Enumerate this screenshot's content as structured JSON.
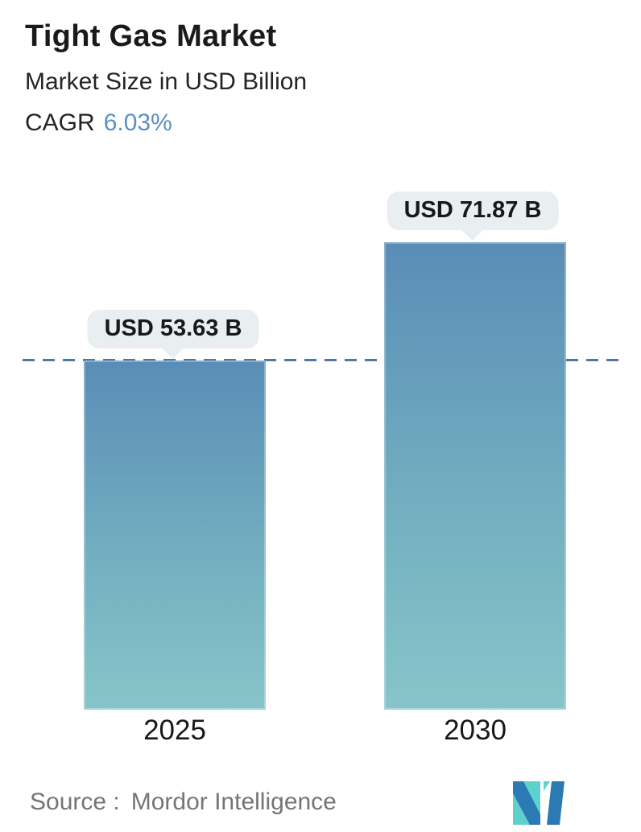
{
  "header": {
    "title": "Tight Gas Market",
    "subtitle": "Market Size in USD Billion",
    "cagr_label": "CAGR",
    "cagr_value": "6.03%"
  },
  "chart_data": {
    "type": "bar",
    "categories": [
      "2025",
      "2030"
    ],
    "values": [
      53.63,
      71.87
    ],
    "value_labels": [
      "USD 53.63 B",
      "USD 71.87 B"
    ],
    "unit": "USD Billion",
    "title": "Tight Gas Market",
    "ylabel": "Market Size in USD Billion",
    "ylim": [
      0,
      80
    ],
    "grid": false,
    "legend": false,
    "reference_line": {
      "value": 53.63,
      "style": "dashed",
      "color": "#4a7aa5"
    }
  },
  "footer": {
    "source_label": "Source :",
    "source_name": "Mordor Intelligence",
    "logo": "mordor-intelligence-logo"
  },
  "colors": {
    "bar_gradient_top": "#5a8db6",
    "bar_gradient_bottom": "#87c5c9",
    "dashed_line": "#4a7aa5",
    "tooltip_bg": "#e9eef0",
    "cagr_accent": "#5b90c5",
    "source_text": "#757575",
    "logo_blue": "#2b7ab4",
    "logo_teal": "#5ed1ce"
  }
}
